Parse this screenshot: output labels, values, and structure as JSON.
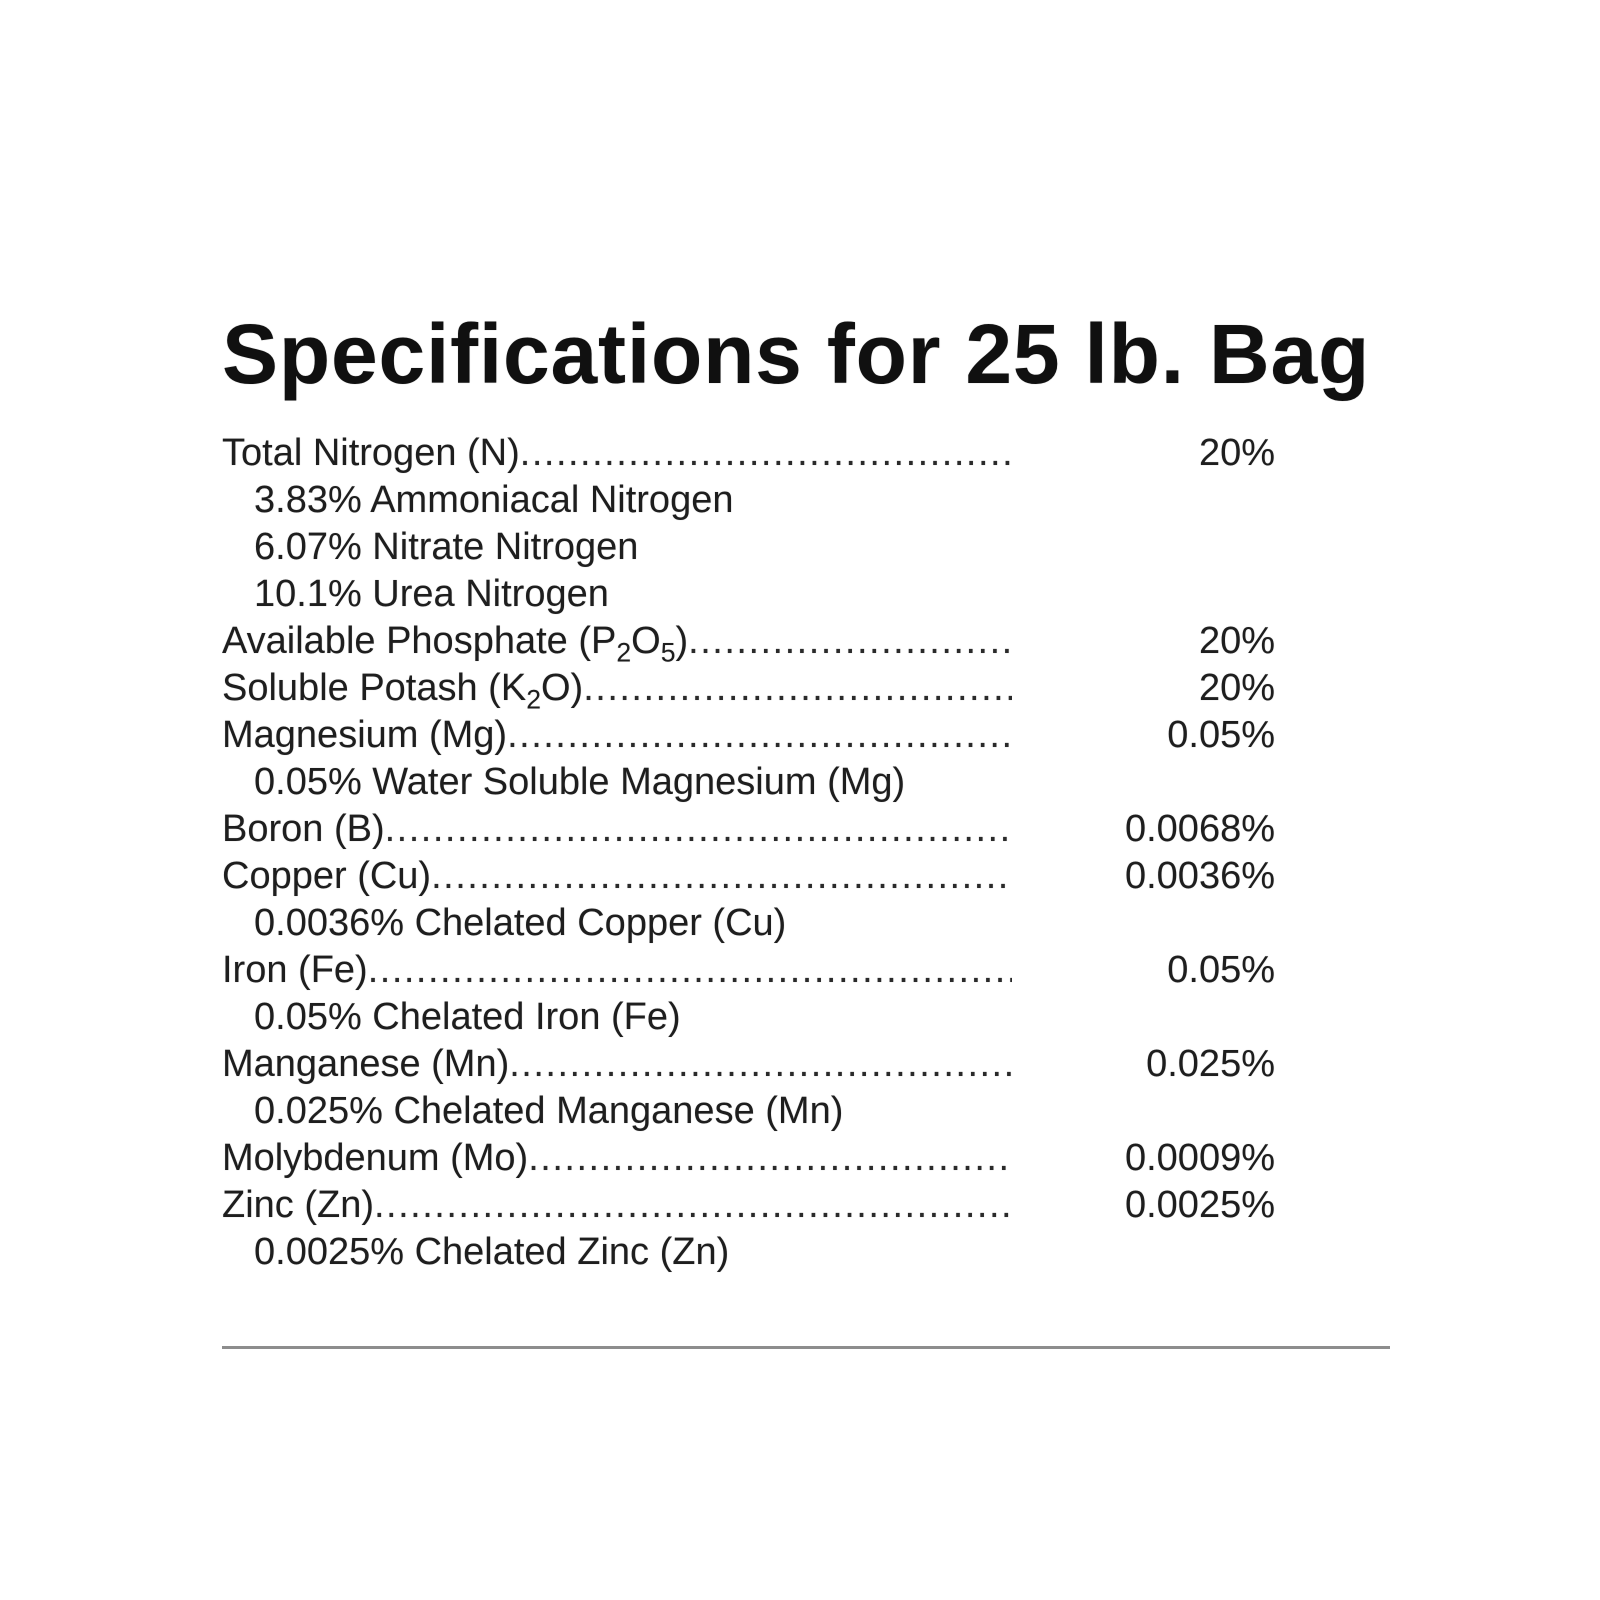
{
  "page": {
    "title": "Specifications for 25 lb. Bag",
    "text_color": "#1e1e1e",
    "divider_color": "#8d8d8d"
  },
  "table": {
    "rows": [
      {
        "type": "main",
        "label": "Total Nitrogen (N)",
        "value": "20%"
      },
      {
        "type": "sub",
        "label": "3.83% Ammoniacal Nitrogen"
      },
      {
        "type": "sub",
        "label": "6.07% Nitrate Nitrogen"
      },
      {
        "type": "sub",
        "label": "10.1% Urea Nitrogen"
      },
      {
        "type": "main",
        "label_parts": [
          {
            "t": "Available Phosphate (P"
          },
          {
            "t": "2",
            "sub": true
          },
          {
            "t": "O"
          },
          {
            "t": "5",
            "sub": true
          },
          {
            "t": ")"
          }
        ],
        "value": "20%"
      },
      {
        "type": "main",
        "label_parts": [
          {
            "t": "Soluble Potash (K"
          },
          {
            "t": "2",
            "sub": true
          },
          {
            "t": "O)"
          }
        ],
        "value": "20%"
      },
      {
        "type": "main",
        "label": "Magnesium (Mg)",
        "value": "0.05%"
      },
      {
        "type": "sub",
        "label": "0.05% Water Soluble Magnesium (Mg)"
      },
      {
        "type": "main",
        "label": "Boron (B)",
        "value": "0.0068%"
      },
      {
        "type": "main",
        "label": "Copper (Cu)",
        "value": "0.0036%"
      },
      {
        "type": "sub",
        "label": "0.0036% Chelated Copper (Cu)"
      },
      {
        "type": "main",
        "label": "Iron (Fe)",
        "value": "0.05%"
      },
      {
        "type": "sub",
        "label": "0.05% Chelated Iron (Fe)"
      },
      {
        "type": "main",
        "label": "Manganese (Mn)",
        "value": "0.025%"
      },
      {
        "type": "sub",
        "label": "0.025% Chelated Manganese (Mn)"
      },
      {
        "type": "main",
        "label": "Molybdenum (Mo)",
        "value": "0.0009%"
      },
      {
        "type": "main",
        "label": "Zinc (Zn)",
        "value": "0.0025%"
      },
      {
        "type": "sub",
        "label": "0.0025% Chelated Zinc (Zn)"
      }
    ]
  }
}
